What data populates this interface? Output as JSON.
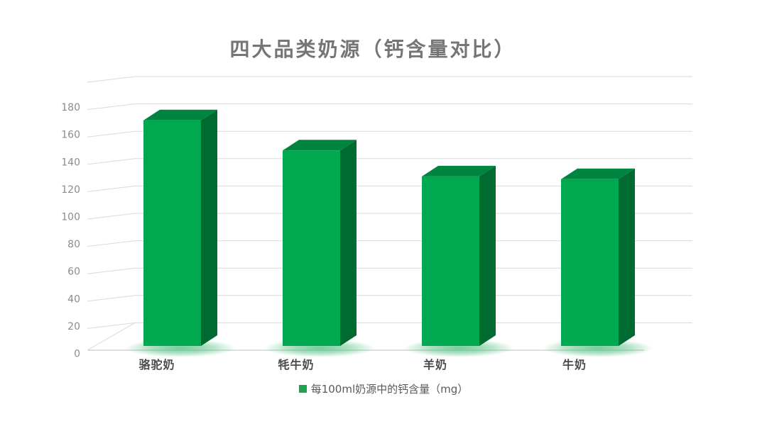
{
  "title": "四大品类奶源（钙含量对比）",
  "legend": {
    "label": "每100ml奶源中的钙含量（mg）",
    "swatch_color": "#1EA353"
  },
  "colors": {
    "background": "#FFFFFF",
    "title_text": "#757575",
    "gridline": "#D9D9D9",
    "axis_line": "#C9C9C9",
    "y_tick_text": "#8C8C8C",
    "category_text": "#4A4A4A",
    "legend_text": "#595959",
    "bar_front": "#00A950",
    "bar_top": "#008540",
    "bar_side": "#006B30",
    "bar_glow": "#5BC487"
  },
  "chart_data": {
    "type": "bar",
    "style": "3d-column",
    "title": "四大品类奶源（钙含量对比）",
    "categories": [
      "骆驼奶",
      "牦牛奶",
      "羊奶",
      "牛奶"
    ],
    "values": [
      168,
      146,
      127,
      125
    ],
    "series": [
      {
        "name": "每100ml奶源中的钙含量（mg）",
        "values": [
          168,
          146,
          127,
          125
        ]
      }
    ],
    "xlabel": "",
    "ylabel": "",
    "ylim": [
      0,
      180
    ],
    "y_ticks": [
      0,
      20,
      40,
      60,
      80,
      100,
      120,
      140,
      160,
      180
    ],
    "grid": true,
    "legend_position": "bottom"
  }
}
